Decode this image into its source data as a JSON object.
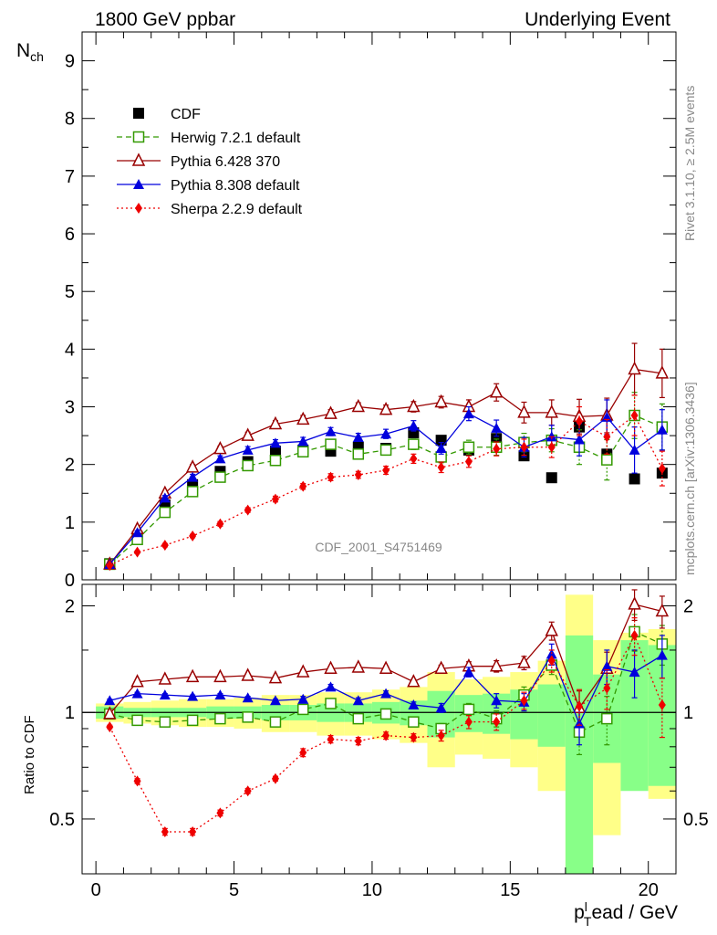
{
  "header": {
    "left": "1800 GeV ppbar",
    "right": "Underlying Event"
  },
  "side_texts": {
    "rivet": "Rivet 3.1.10, ≥ 2.5M events",
    "mcplots": "mcplots.cern.ch [arXiv:1306.3436]"
  },
  "watermark": "CDF_2001_S4751469",
  "legend": [
    {
      "label": "CDF",
      "marker": "square-filled",
      "color": "#000000",
      "line": "none"
    },
    {
      "label": "Herwig 7.2.1 default",
      "marker": "square-open",
      "color": "#339900",
      "line": "dashed"
    },
    {
      "label": "Pythia 6.428 370",
      "marker": "triangle-open",
      "color": "#990000",
      "line": "solid"
    },
    {
      "label": "Pythia 8.308 default",
      "marker": "triangle-filled",
      "color": "#0000dd",
      "line": "solid"
    },
    {
      "label": "Sherpa 2.2.9 default",
      "marker": "diamond-filled",
      "color": "#ee0000",
      "line": "dotted"
    }
  ],
  "chart_data": [
    {
      "type": "scatter",
      "title": "",
      "ylabel_main": "N",
      "ylabel_sub": "ch",
      "xlim": [
        -0.5,
        21
      ],
      "ylim": [
        0,
        9.5
      ],
      "yticks": [
        0,
        1,
        2,
        3,
        4,
        5,
        6,
        7,
        8,
        9
      ],
      "grid": false,
      "legend_position": "top-left",
      "x": [
        0.5,
        1.5,
        2.5,
        3.5,
        4.5,
        5.5,
        6.5,
        7.5,
        8.5,
        9.5,
        10.5,
        11.5,
        12.5,
        13.5,
        14.5,
        15.5,
        16.5,
        17.5,
        18.5,
        19.5,
        20.5
      ],
      "series": [
        {
          "name": "CDF",
          "values": [
            0.28,
            0.75,
            1.3,
            1.65,
            1.88,
            2.05,
            2.23,
            2.25,
            2.23,
            2.3,
            2.28,
            2.55,
            2.42,
            2.25,
            2.45,
            2.15,
            1.77,
            2.65,
            2.18,
            1.75,
            1.85
          ]
        },
        {
          "name": "Herwig 7.2.1 default",
          "values": [
            0.27,
            0.7,
            1.17,
            1.53,
            1.78,
            1.98,
            2.07,
            2.22,
            2.35,
            2.18,
            2.25,
            2.35,
            2.13,
            2.3,
            2.3,
            2.38,
            2.42,
            2.3,
            2.08,
            2.85,
            2.65
          ],
          "errors": [
            0.02,
            0.03,
            0.04,
            0.05,
            0.05,
            0.06,
            0.06,
            0.06,
            0.07,
            0.07,
            0.08,
            0.09,
            0.1,
            0.12,
            0.14,
            0.16,
            0.2,
            0.3,
            0.35,
            0.4,
            0.4
          ]
        },
        {
          "name": "Pythia 6.428 370",
          "values": [
            0.27,
            0.88,
            1.5,
            1.95,
            2.27,
            2.5,
            2.7,
            2.78,
            2.88,
            3.0,
            2.95,
            3.0,
            3.08,
            3.0,
            3.25,
            2.9,
            2.9,
            2.83,
            2.85,
            3.65,
            3.58
          ],
          "errors": [
            0.02,
            0.03,
            0.04,
            0.05,
            0.05,
            0.06,
            0.06,
            0.07,
            0.07,
            0.07,
            0.08,
            0.09,
            0.1,
            0.12,
            0.15,
            0.18,
            0.22,
            0.3,
            0.3,
            0.45,
            0.42
          ]
        },
        {
          "name": "Pythia 8.308 default",
          "values": [
            0.27,
            0.82,
            1.42,
            1.78,
            2.1,
            2.25,
            2.37,
            2.4,
            2.57,
            2.47,
            2.53,
            2.67,
            2.28,
            2.88,
            2.63,
            2.3,
            2.48,
            2.43,
            2.82,
            2.25,
            2.6
          ],
          "errors": [
            0.02,
            0.03,
            0.04,
            0.05,
            0.05,
            0.06,
            0.06,
            0.07,
            0.07,
            0.07,
            0.08,
            0.09,
            0.1,
            0.12,
            0.14,
            0.17,
            0.2,
            0.28,
            0.3,
            0.4,
            0.35
          ]
        },
        {
          "name": "Sherpa 2.2.9 default",
          "values": [
            0.25,
            0.48,
            0.6,
            0.76,
            0.97,
            1.21,
            1.4,
            1.62,
            1.78,
            1.82,
            1.9,
            2.1,
            1.95,
            2.05,
            2.27,
            2.3,
            2.3,
            2.75,
            2.48,
            2.85,
            1.93
          ],
          "errors": [
            0.02,
            0.02,
            0.03,
            0.03,
            0.04,
            0.04,
            0.05,
            0.05,
            0.06,
            0.06,
            0.07,
            0.08,
            0.09,
            0.1,
            0.12,
            0.14,
            0.18,
            0.25,
            0.3,
            0.35,
            0.3
          ]
        }
      ]
    },
    {
      "type": "scatter",
      "title": "",
      "xlabel": "p_T^lead / GeV",
      "ylabel": "Ratio to CDF",
      "xlim": [
        -0.5,
        21
      ],
      "ylim": [
        0.35,
        2.3
      ],
      "yticks": [
        0.5,
        1,
        2
      ],
      "xticks": [
        0,
        5,
        10,
        15,
        20
      ],
      "grid": false,
      "reference_line": 1,
      "x": [
        0.5,
        1.5,
        2.5,
        3.5,
        4.5,
        5.5,
        6.5,
        7.5,
        8.5,
        9.5,
        10.5,
        11.5,
        12.5,
        13.5,
        14.5,
        15.5,
        16.5,
        17.5,
        18.5,
        19.5,
        20.5
      ],
      "bands": {
        "bins": [
          [
            0,
            1
          ],
          [
            1,
            2
          ],
          [
            2,
            3
          ],
          [
            3,
            4
          ],
          [
            4,
            5
          ],
          [
            5,
            6
          ],
          [
            6,
            7
          ],
          [
            7,
            8
          ],
          [
            8,
            9
          ],
          [
            9,
            10
          ],
          [
            10,
            11
          ],
          [
            11,
            12
          ],
          [
            12,
            13
          ],
          [
            13,
            14
          ],
          [
            14,
            15
          ],
          [
            15,
            16
          ],
          [
            16,
            17
          ],
          [
            17,
            18
          ],
          [
            18,
            19
          ],
          [
            19,
            20
          ],
          [
            20,
            21
          ]
        ],
        "green": [
          [
            0.96,
            1.04
          ],
          [
            0.97,
            1.03
          ],
          [
            0.97,
            1.03
          ],
          [
            0.97,
            1.03
          ],
          [
            0.96,
            1.04
          ],
          [
            0.96,
            1.04
          ],
          [
            0.95,
            1.05
          ],
          [
            0.95,
            1.05
          ],
          [
            0.94,
            1.06
          ],
          [
            0.94,
            1.06
          ],
          [
            0.93,
            1.07
          ],
          [
            0.92,
            1.08
          ],
          [
            0.85,
            1.15
          ],
          [
            0.88,
            1.12
          ],
          [
            0.87,
            1.13
          ],
          [
            0.84,
            1.16
          ],
          [
            0.8,
            1.2
          ],
          [
            0.3,
            1.65
          ],
          [
            0.72,
            1.28
          ],
          [
            0.6,
            1.6
          ],
          [
            0.62,
            1.55
          ]
        ],
        "yellow": [
          [
            0.94,
            1.06
          ],
          [
            0.93,
            1.07
          ],
          [
            0.92,
            1.08
          ],
          [
            0.91,
            1.09
          ],
          [
            0.91,
            1.09
          ],
          [
            0.9,
            1.1
          ],
          [
            0.88,
            1.12
          ],
          [
            0.88,
            1.12
          ],
          [
            0.86,
            1.14
          ],
          [
            0.86,
            1.14
          ],
          [
            0.84,
            1.16
          ],
          [
            0.82,
            1.18
          ],
          [
            0.7,
            1.3
          ],
          [
            0.76,
            1.24
          ],
          [
            0.74,
            1.26
          ],
          [
            0.7,
            1.3
          ],
          [
            0.6,
            1.4
          ],
          [
            0.3,
            2.15
          ],
          [
            0.45,
            1.6
          ],
          [
            0.84,
            1.68
          ],
          [
            0.57,
            1.72
          ]
        ]
      },
      "series": [
        {
          "name": "Herwig 7.2.1 default",
          "values": [
            0.99,
            0.95,
            0.94,
            0.95,
            0.96,
            0.97,
            0.94,
            1.02,
            1.06,
            0.96,
            0.99,
            0.94,
            0.9,
            1.02,
            0.96,
            1.12,
            1.36,
            0.88,
            0.96,
            1.69,
            1.56
          ],
          "errors": [
            0.01,
            0.01,
            0.01,
            0.01,
            0.01,
            0.01,
            0.01,
            0.02,
            0.02,
            0.02,
            0.02,
            0.02,
            0.03,
            0.04,
            0.05,
            0.06,
            0.08,
            0.12,
            0.15,
            0.2,
            0.2
          ]
        },
        {
          "name": "Pythia 6.428 370",
          "values": [
            0.99,
            1.22,
            1.24,
            1.26,
            1.26,
            1.27,
            1.25,
            1.3,
            1.33,
            1.34,
            1.33,
            1.22,
            1.33,
            1.35,
            1.35,
            1.38,
            1.7,
            1.03,
            1.33,
            2.02,
            1.93
          ],
          "errors": [
            0.01,
            0.01,
            0.01,
            0.01,
            0.01,
            0.01,
            0.01,
            0.02,
            0.02,
            0.02,
            0.02,
            0.02,
            0.03,
            0.04,
            0.05,
            0.06,
            0.1,
            0.12,
            0.15,
            0.2,
            0.2
          ]
        },
        {
          "name": "Pythia 8.308 default",
          "values": [
            1.08,
            1.13,
            1.12,
            1.11,
            1.12,
            1.1,
            1.08,
            1.09,
            1.18,
            1.08,
            1.13,
            1.05,
            1.03,
            1.3,
            1.08,
            1.07,
            1.46,
            0.93,
            1.35,
            1.3,
            1.45
          ],
          "errors": [
            0.01,
            0.01,
            0.01,
            0.01,
            0.01,
            0.01,
            0.01,
            0.02,
            0.02,
            0.02,
            0.02,
            0.02,
            0.03,
            0.04,
            0.05,
            0.06,
            0.1,
            0.12,
            0.15,
            0.2,
            0.2
          ]
        },
        {
          "name": "Sherpa 2.2.9 default",
          "values": [
            0.91,
            0.64,
            0.46,
            0.46,
            0.52,
            0.6,
            0.65,
            0.77,
            0.84,
            0.83,
            0.86,
            0.85,
            0.86,
            0.94,
            0.94,
            1.08,
            1.4,
            1.04,
            1.17,
            1.65,
            1.05
          ],
          "errors": [
            0.01,
            0.01,
            0.01,
            0.01,
            0.01,
            0.01,
            0.01,
            0.02,
            0.02,
            0.02,
            0.02,
            0.02,
            0.03,
            0.04,
            0.05,
            0.06,
            0.1,
            0.12,
            0.15,
            0.2,
            0.2
          ]
        }
      ]
    }
  ]
}
